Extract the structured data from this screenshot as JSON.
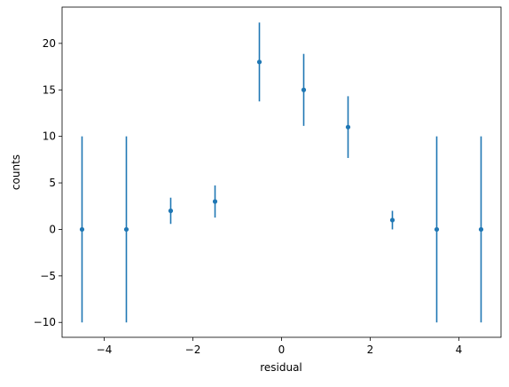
{
  "chart_data": {
    "type": "errorbar",
    "xlabel": "residual",
    "ylabel": "counts",
    "x": [
      -4.5,
      -3.5,
      -2.5,
      -1.5,
      -0.5,
      0.5,
      1.5,
      2.5,
      3.5,
      4.5
    ],
    "values": [
      0,
      0,
      2,
      3,
      18,
      15,
      11,
      1,
      0,
      0
    ],
    "errors": [
      10,
      10,
      1.41,
      1.73,
      4.24,
      3.87,
      3.32,
      1,
      10,
      10
    ],
    "color": "#1f77b4",
    "xlim": [
      -4.95,
      4.95
    ],
    "xticks": [
      {
        "value": -4,
        "label": "−4"
      },
      {
        "value": -2,
        "label": "−2"
      },
      0,
      2,
      4
    ],
    "ylim": [
      -11.6,
      23.9
    ],
    "yticks": [
      {
        "value": -10,
        "label": "−10"
      },
      {
        "value": -5,
        "label": "−5"
      },
      0,
      5,
      10,
      15,
      20
    ],
    "grid": false
  }
}
